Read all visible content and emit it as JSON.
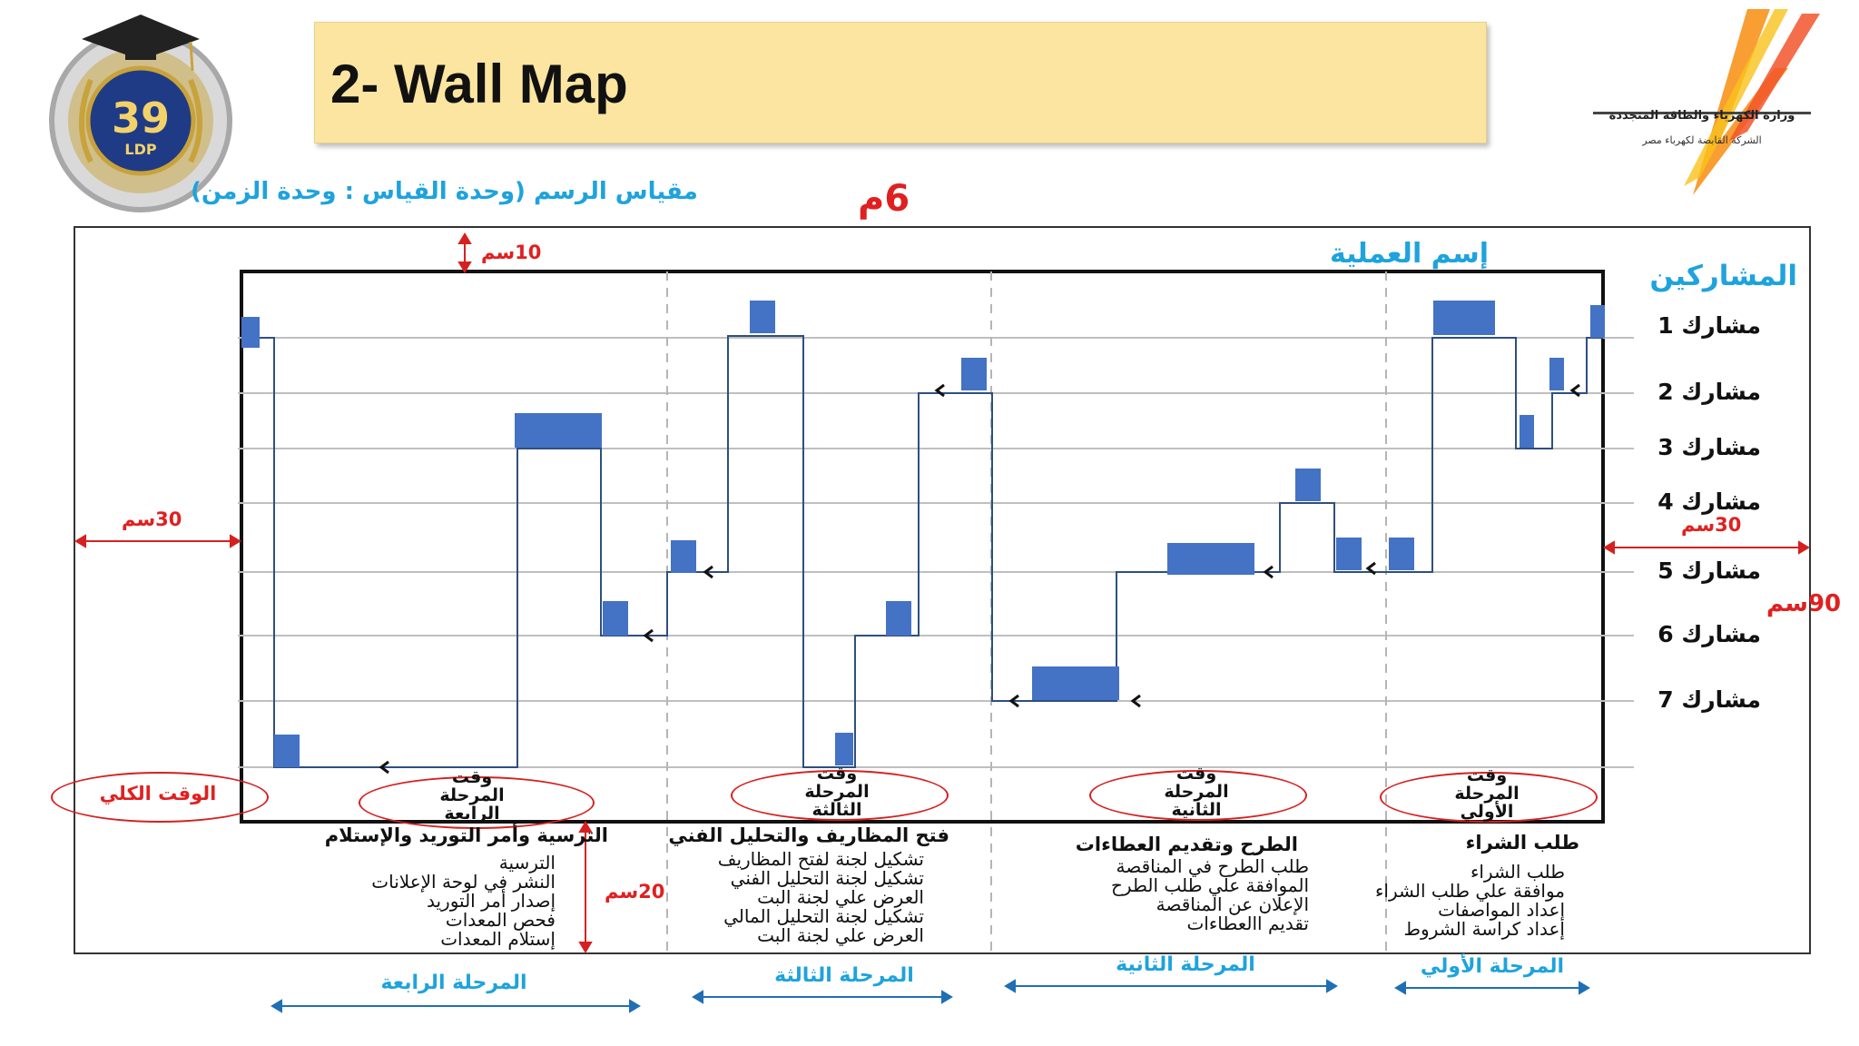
{
  "header": {
    "title": "2- Wall Map",
    "scale_caption": "مقياس الرسم (وحدة القياس : وحدة الزمن)",
    "scale_value": "6م",
    "logo_badge_number": "39",
    "logo_badge_text": "LDP",
    "ministry_line1": "وزارة الكهرباء والطاقة المتجددة",
    "ministry_line2": "الشركة القابضة لكهرباء مصر"
  },
  "map": {
    "process_name": "إسم العملية",
    "participants_heading": "المشاركين",
    "participants": [
      "مشارك 1",
      "مشارك 2",
      "مشارك 3",
      "مشارك 4",
      "مشارك 5",
      "مشارك 6",
      "مشارك 7"
    ],
    "dim_top": "10سم",
    "dim_left": "30سم",
    "dim_right": "30سم",
    "dim_height": "90سم",
    "dim_bottom": "20سم",
    "total_time": "الوقت الكلي"
  },
  "phases": [
    {
      "time_label": "وقت المرحلة الرابعة",
      "title": "الترسية وأمر التوريد والإستلام",
      "tasks": [
        "الترسية",
        "النشر في لوحة الإعلانات",
        "إصدار أمر التوريد",
        "فحص المعدات",
        "إستلام المعدات"
      ],
      "stage": "المرحلة الرابعة"
    },
    {
      "time_label": "وقت المرحلة الثالثة",
      "title": "فتح المظاريف والتحليل الفني",
      "tasks": [
        "تشكيل لجنة لفتح المظاريف",
        "تشكيل لجنة التحليل الفني",
        "العرض علي لجنة البت",
        "تشكيل لجنة التحليل المالي",
        "العرض علي لجنة البت"
      ],
      "stage": "المرحلة الثالثة"
    },
    {
      "time_label": "وقت المرحلة الثانية",
      "title": "الطرح وتقديم العطاءات",
      "tasks": [
        "طلب الطرح في المناقصة",
        "الموافقة علي طلب الطرح",
        "الإعلان عن المناقصة",
        "تقديم االعطاءات"
      ],
      "stage": "المرحلة الثانية"
    },
    {
      "time_label": "وقت المرحلة الأولي",
      "title": "طلب الشراء",
      "tasks": [
        "طلب الشراء",
        "موافقة علي طلب الشراء",
        "إعداد المواصفات",
        "إعداد كراسة الشروط"
      ],
      "stage": "المرحلة الأولي"
    }
  ],
  "colors": {
    "activity_fill": "#4472c4",
    "flow_line": "#2f4f7f",
    "accent_red": "#e02020",
    "accent_blue": "#1ea3dc",
    "title_bg": "#fbe5a0"
  }
}
